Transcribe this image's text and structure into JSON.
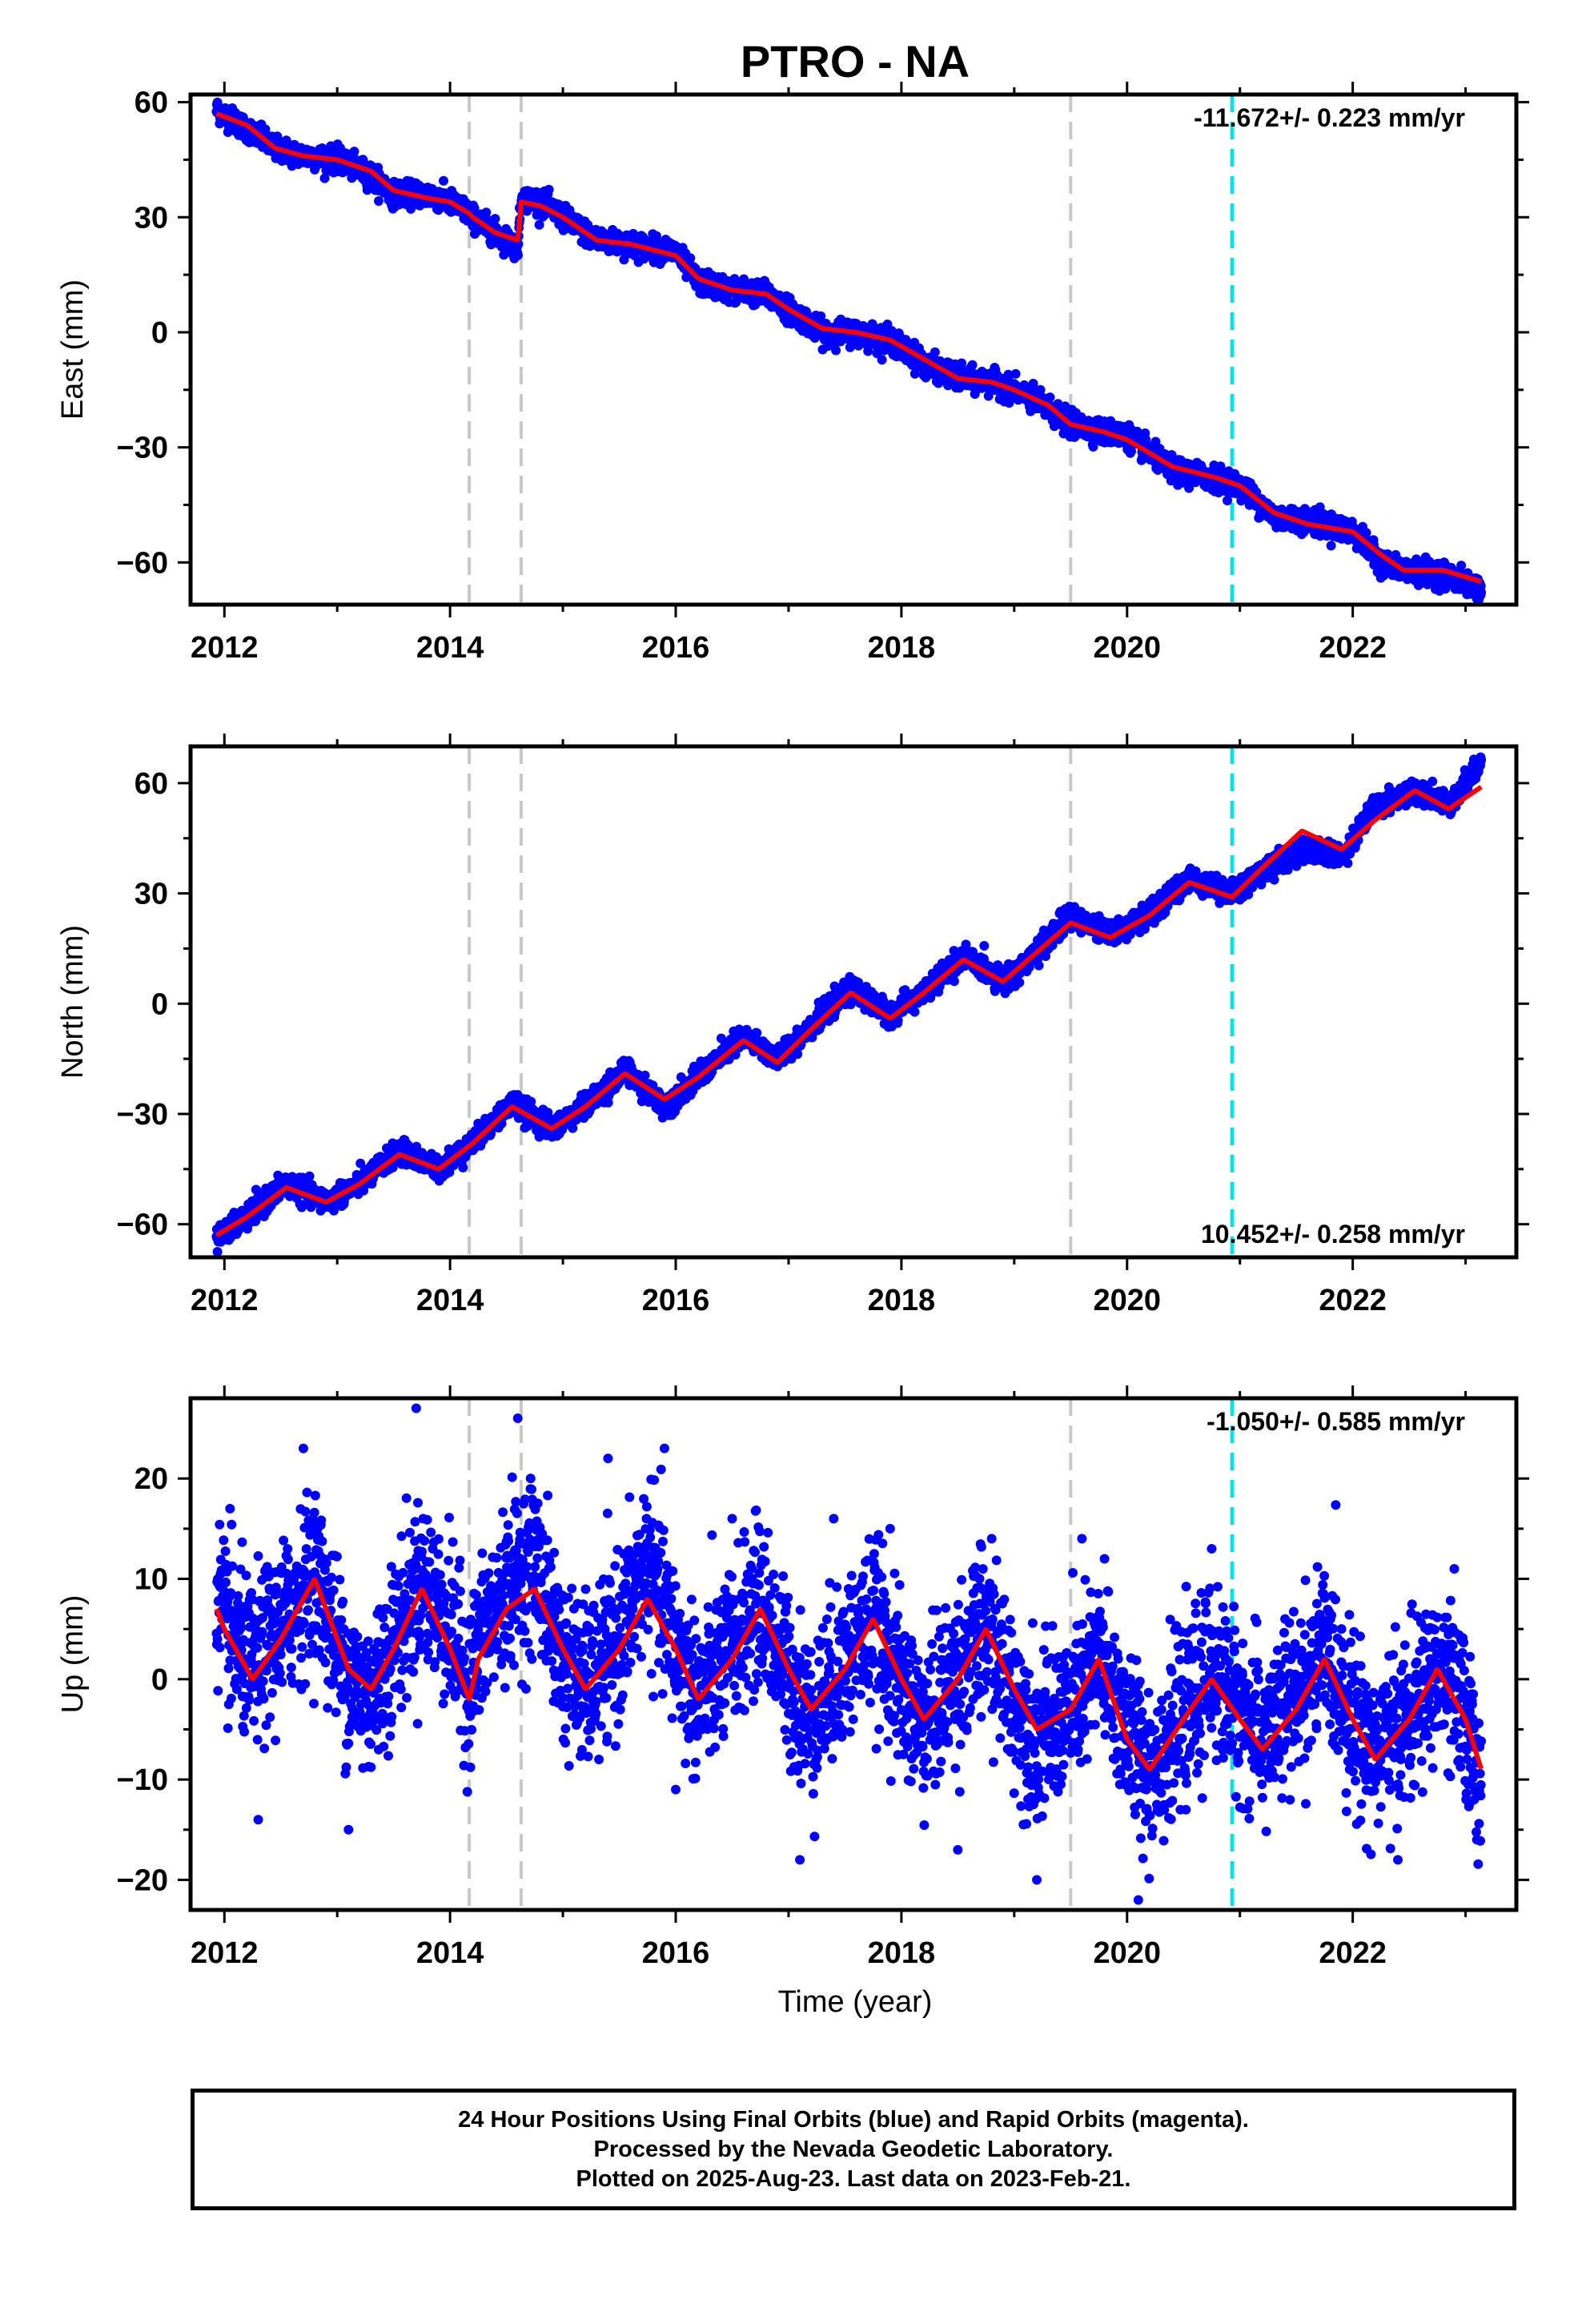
{
  "title": "PTRO - NA",
  "colors": {
    "points": "#0000ff",
    "model": "#ff0000",
    "event_line": "#c8c8c8",
    "rapid_line": "#00e5e5",
    "frame": "#000000"
  },
  "x_axis": {
    "label": "Time (year)",
    "range": [
      2011.7,
      2023.45
    ],
    "ticks": [
      "2012",
      "2014",
      "2016",
      "2018",
      "2020",
      "2022"
    ]
  },
  "event_lines": [
    2014.17,
    2014.63,
    2019.5
  ],
  "rapid_orbit_start": 2020.93,
  "chart_data": [
    {
      "type": "scatter",
      "component": "east",
      "ylabel": "East (mm)",
      "ylim": [
        -71,
        62
      ],
      "yticks": [
        "60",
        "30",
        "0",
        "−30",
        "−60"
      ],
      "rate_text": "-11.672+/- 0.223 mm/yr",
      "rate_position": "top-right",
      "x_start": 2011.93,
      "x_end": 2023.14,
      "scatter_noise_mm": 1.5,
      "series": [
        {
          "name": "model",
          "x": [
            2011.93,
            2012.2,
            2012.45,
            2012.7,
            2013.0,
            2013.3,
            2013.5,
            2013.8,
            2014.0,
            2014.17,
            2014.2,
            2014.4,
            2014.6,
            2014.63,
            2014.8,
            2015.0,
            2015.3,
            2015.6,
            2016.0,
            2016.2,
            2016.5,
            2016.8,
            2017.0,
            2017.3,
            2017.6,
            2017.9,
            2018.2,
            2018.5,
            2018.8,
            2019.0,
            2019.3,
            2019.5,
            2019.8,
            2020.0,
            2020.4,
            2020.8,
            2021.0,
            2021.3,
            2021.6,
            2022.0,
            2022.25,
            2022.45,
            2022.8,
            2023.14
          ],
          "y": [
            57,
            54,
            48,
            46,
            45,
            42,
            37,
            35,
            34,
            31,
            30,
            26,
            24,
            34,
            33,
            30,
            24,
            23,
            20,
            14,
            11,
            10,
            6,
            1,
            0,
            -2,
            -7,
            -12,
            -13,
            -15,
            -19,
            -24,
            -26,
            -28,
            -35,
            -38,
            -40,
            -47,
            -50,
            -52,
            -58,
            -62,
            -62,
            -65
          ]
        },
        {
          "name": "daily positions",
          "x": [
            2011.93,
            2012.2,
            2012.45,
            2012.7,
            2013.0,
            2013.3,
            2013.5,
            2013.8,
            2014.0,
            2014.17,
            2014.2,
            2014.4,
            2014.6,
            2014.63,
            2014.8,
            2015.0,
            2015.3,
            2015.6,
            2016.0,
            2016.2,
            2016.5,
            2016.8,
            2017.0,
            2017.3,
            2017.6,
            2017.9,
            2018.2,
            2018.5,
            2018.8,
            2019.0,
            2019.3,
            2019.5,
            2019.8,
            2020.0,
            2020.4,
            2020.8,
            2021.0,
            2021.3,
            2021.6,
            2022.0,
            2022.25,
            2022.45,
            2022.8,
            2023.14
          ],
          "y": [
            58,
            53,
            48,
            46,
            45,
            41,
            36,
            36,
            34,
            31,
            30,
            26,
            22,
            35,
            34,
            30,
            24,
            23,
            21,
            13,
            11,
            10,
            6,
            0,
            0,
            -2,
            -8,
            -12,
            -13,
            -15,
            -20,
            -24,
            -26,
            -27,
            -36,
            -38,
            -40,
            -48,
            -49,
            -52,
            -60,
            -62,
            -63,
            -67
          ]
        }
      ]
    },
    {
      "type": "scatter",
      "component": "north",
      "ylabel": "North (mm)",
      "ylim": [
        -69,
        70
      ],
      "yticks": [
        "60",
        "30",
        "0",
        "−30",
        "−60"
      ],
      "rate_text": "10.452+/- 0.258 mm/yr",
      "rate_position": "bottom-right",
      "x_start": 2011.93,
      "x_end": 2023.14,
      "scatter_noise_mm": 1.5,
      "series": [
        {
          "name": "model",
          "x": [
            2011.93,
            2012.2,
            2012.55,
            2012.9,
            2013.2,
            2013.55,
            2013.9,
            2014.2,
            2014.55,
            2014.9,
            2015.2,
            2015.55,
            2015.9,
            2016.2,
            2016.6,
            2016.9,
            2017.2,
            2017.55,
            2017.9,
            2018.2,
            2018.55,
            2018.9,
            2019.2,
            2019.5,
            2019.85,
            2020.2,
            2020.55,
            2020.93,
            2021.2,
            2021.55,
            2021.9,
            2022.2,
            2022.55,
            2022.85,
            2023.14
          ],
          "y": [
            -63,
            -58,
            -50,
            -54,
            -49,
            -41,
            -45,
            -38,
            -28,
            -34,
            -28,
            -19,
            -26,
            -20,
            -10,
            -16,
            -7,
            3,
            -4,
            3,
            12,
            6,
            14,
            22,
            18,
            24,
            33,
            29,
            37,
            47,
            42,
            50,
            58,
            53,
            59
          ]
        },
        {
          "name": "daily positions",
          "x": [
            2011.93,
            2012.2,
            2012.55,
            2012.9,
            2013.2,
            2013.55,
            2013.9,
            2014.2,
            2014.55,
            2014.9,
            2015.2,
            2015.55,
            2015.9,
            2016.2,
            2016.6,
            2016.9,
            2017.2,
            2017.55,
            2017.9,
            2018.2,
            2018.55,
            2018.9,
            2019.2,
            2019.5,
            2019.85,
            2020.2,
            2020.55,
            2020.93,
            2021.2,
            2021.55,
            2021.9,
            2022.2,
            2022.55,
            2022.85,
            2023.14
          ],
          "y": [
            -64,
            -58,
            -49,
            -54,
            -49,
            -40,
            -45,
            -38,
            -27,
            -34,
            -28,
            -18,
            -28,
            -20,
            -9,
            -15,
            -6,
            4,
            -3,
            3,
            13,
            6,
            14,
            24,
            19,
            24,
            34,
            30,
            36,
            42,
            40,
            54,
            58,
            54,
            66
          ]
        }
      ]
    },
    {
      "type": "scatter",
      "component": "up",
      "ylabel": "Up (mm)",
      "ylim": [
        -23,
        28
      ],
      "yticks": [
        "20",
        "10",
        "0",
        "−10",
        "−20"
      ],
      "rate_text": "-1.050+/- 0.585 mm/yr",
      "rate_position": "top-right",
      "x_start": 2011.93,
      "x_end": 2023.14,
      "scatter_noise_mm": 4.0,
      "series": [
        {
          "name": "model",
          "x": [
            2011.93,
            2012.0,
            2012.25,
            2012.5,
            2012.8,
            2013.1,
            2013.3,
            2013.5,
            2013.75,
            2014.0,
            2014.17,
            2014.25,
            2014.5,
            2014.75,
            2015.0,
            2015.2,
            2015.5,
            2015.75,
            2016.0,
            2016.2,
            2016.5,
            2016.75,
            2017.0,
            2017.2,
            2017.5,
            2017.75,
            2018.0,
            2018.2,
            2018.5,
            2018.75,
            2019.0,
            2019.2,
            2019.5,
            2019.75,
            2020.0,
            2020.2,
            2020.5,
            2020.75,
            2021.0,
            2021.2,
            2021.5,
            2021.75,
            2022.0,
            2022.2,
            2022.5,
            2022.75,
            2023.0,
            2023.14
          ],
          "y": [
            7,
            5,
            0,
            4,
            10,
            1,
            -1,
            3,
            9,
            3,
            -2,
            2,
            7,
            9,
            3,
            -1,
            3,
            8,
            3,
            -2,
            2,
            7,
            1,
            -3,
            1,
            6,
            0,
            -4,
            0,
            5,
            -1,
            -5,
            -3,
            2,
            -6,
            -9,
            -4,
            0,
            -4,
            -7,
            -3,
            2,
            -4,
            -8,
            -4,
            1,
            -4,
            -9
          ]
        },
        {
          "name": "daily positions",
          "x": [
            2011.93,
            2012.0,
            2012.25,
            2012.5,
            2012.8,
            2013.1,
            2013.3,
            2013.5,
            2013.75,
            2014.0,
            2014.17,
            2014.25,
            2014.5,
            2014.75,
            2015.0,
            2015.2,
            2015.5,
            2015.75,
            2016.0,
            2016.2,
            2016.5,
            2016.75,
            2017.0,
            2017.2,
            2017.5,
            2017.75,
            2018.0,
            2018.2,
            2018.5,
            2018.75,
            2019.0,
            2019.2,
            2019.5,
            2019.75,
            2020.0,
            2020.2,
            2020.5,
            2020.75,
            2021.0,
            2021.2,
            2021.5,
            2021.75,
            2022.0,
            2022.2,
            2022.5,
            2022.75,
            2023.0,
            2023.14
          ],
          "y": [
            9,
            5,
            1,
            5,
            11,
            0,
            -2,
            4,
            10,
            5,
            -1,
            3,
            9,
            12,
            2,
            -1,
            4,
            12,
            3,
            -2,
            3,
            8,
            0,
            -4,
            2,
            6,
            -1,
            -5,
            1,
            5,
            -2,
            -6,
            -3,
            2,
            -5,
            -9,
            -4,
            1,
            -3,
            -6,
            -2,
            3,
            -4,
            -7,
            -4,
            1,
            -4,
            -10
          ],
          "outliers_x": [
            2012.05,
            2012.3,
            2012.7,
            2013.1,
            2013.7,
            2014.6,
            2015.4,
            2015.9,
            2016.0,
            2016.5,
            2017.1,
            2017.4,
            2017.9,
            2018.5,
            2018.8,
            2019.2,
            2019.6,
            2019.8,
            2020.1,
            2020.75,
            2021.4,
            2021.9,
            2022.4,
            2022.9,
            2023.1
          ],
          "outliers_y": [
            17,
            -14,
            23,
            -15,
            27,
            26,
            22,
            23,
            -11,
            16,
            -18,
            16,
            15,
            -17,
            14,
            -20,
            14,
            12,
            -22,
            13,
            6,
            5,
            -18,
            11,
            -16
          ]
        }
      ]
    }
  ],
  "footer": {
    "line1": "24 Hour Positions Using Final Orbits (blue) and Rapid Orbits (magenta).",
    "line2": "Processed by the Nevada Geodetic Laboratory.",
    "line3": "Plotted on 2025-Aug-23. Last data on 2023-Feb-21."
  }
}
